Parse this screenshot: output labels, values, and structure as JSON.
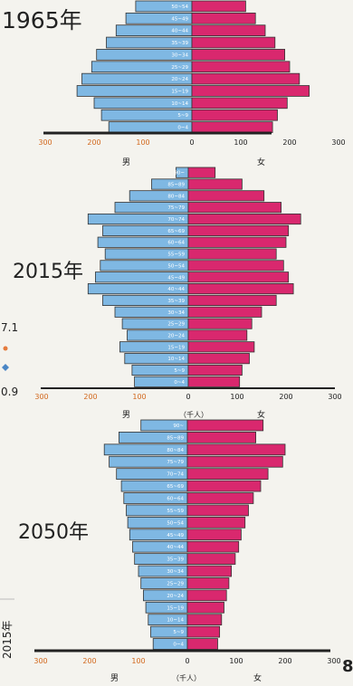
{
  "side_texts": {
    "top": "7.1",
    "bottom": "0.9",
    "vertical": "2015年",
    "page_mark": "8"
  },
  "chart_data": [
    {
      "type": "bar",
      "title": "1965年",
      "xticks_left": [
        "300",
        "200",
        "100"
      ],
      "xticks_right": [
        "100",
        "200",
        "300"
      ],
      "zero_label": "0",
      "male_label": "男",
      "female_label": "女",
      "unit_label": "",
      "xlim": [
        0,
        300
      ],
      "categories": [
        "0~4",
        "5~9",
        "10~14",
        "15~19",
        "20~24",
        "25~29",
        "30~34",
        "35~39",
        "40~44",
        "45~49",
        "50~54"
      ],
      "series": [
        {
          "name": "男",
          "values": [
            170,
            185,
            200,
            235,
            225,
            205,
            195,
            175,
            155,
            135,
            115
          ]
        },
        {
          "name": "女",
          "values": [
            165,
            175,
            195,
            240,
            220,
            200,
            190,
            170,
            150,
            130,
            110
          ]
        }
      ]
    },
    {
      "type": "bar",
      "title": "2015年",
      "xticks_left": [
        "300",
        "200",
        "100"
      ],
      "xticks_right": [
        "100",
        "200",
        "300"
      ],
      "zero_label": "0",
      "male_label": "男",
      "female_label": "女",
      "unit_label": "（千人）",
      "xlim": [
        0,
        300
      ],
      "categories": [
        "0~4",
        "5~9",
        "10~14",
        "15~19",
        "20~24",
        "25~29",
        "30~34",
        "35~39",
        "40~44",
        "45~49",
        "50~54",
        "55~59",
        "60~64",
        "65~69",
        "70~74",
        "75~79",
        "80~84",
        "85~89",
        "90~"
      ],
      "series": [
        {
          "name": "男",
          "values": [
            110,
            115,
            130,
            140,
            125,
            135,
            150,
            175,
            205,
            190,
            180,
            170,
            185,
            175,
            205,
            150,
            120,
            75,
            25
          ]
        },
        {
          "name": "女",
          "values": [
            105,
            110,
            125,
            135,
            120,
            130,
            150,
            180,
            215,
            205,
            195,
            180,
            200,
            205,
            230,
            190,
            155,
            110,
            55
          ]
        }
      ]
    },
    {
      "type": "bar",
      "title": "2050年",
      "xticks_left": [
        "300",
        "200",
        "100"
      ],
      "xticks_right": [
        "100",
        "200",
        "300"
      ],
      "zero_label": "0",
      "male_label": "男",
      "female_label": "女",
      "unit_label": "（千人）",
      "xlim": [
        0,
        300
      ],
      "categories": [
        "0~4",
        "5~9",
        "10~14",
        "15~19",
        "20~24",
        "25~29",
        "30~34",
        "35~39",
        "40~44",
        "45~49",
        "50~54",
        "55~59",
        "60~64",
        "65~69",
        "70~74",
        "75~79",
        "80~84",
        "85~89",
        "90~"
      ],
      "series": [
        {
          "name": "男",
          "values": [
            70,
            75,
            80,
            85,
            90,
            95,
            100,
            108,
            112,
            118,
            122,
            125,
            130,
            135,
            145,
            160,
            170,
            140,
            95
          ]
        },
        {
          "name": "女",
          "values": [
            62,
            66,
            70,
            75,
            80,
            85,
            90,
            98,
            105,
            110,
            118,
            125,
            135,
            150,
            165,
            195,
            200,
            140,
            155
          ]
        }
      ]
    }
  ]
}
